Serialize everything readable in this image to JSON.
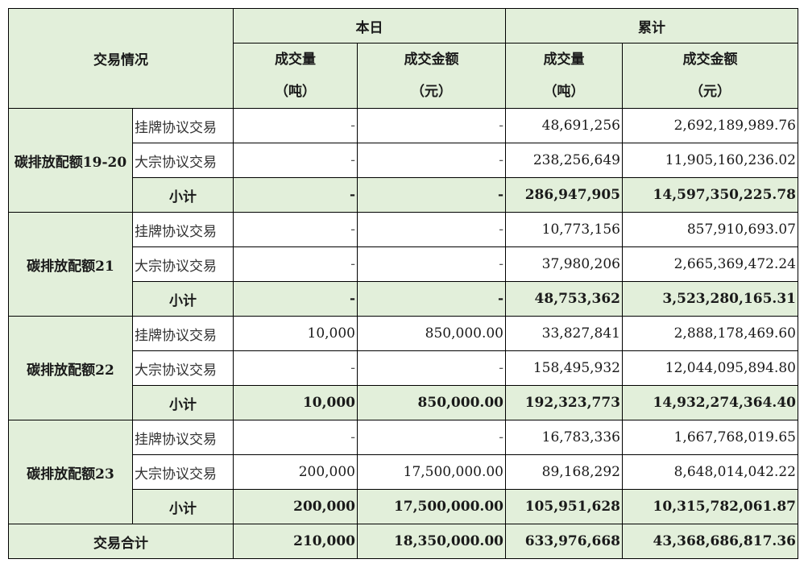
{
  "header": {
    "trading_status": "交易情况",
    "today": "本日",
    "cumulative": "累计",
    "volume": "成交量",
    "volume_unit": "（吨）",
    "amount": "成交金额",
    "amount_unit": "（元）"
  },
  "groups": [
    {
      "product": "碳排放配额19-20",
      "rows": [
        {
          "method": "挂牌协议交易",
          "today_volume": "-",
          "today_amount": "-",
          "cum_volume": "48,691,256",
          "cum_amount": "2,692,189,989.76"
        },
        {
          "method": "大宗协议交易",
          "today_volume": "-",
          "today_amount": "-",
          "cum_volume": "238,256,649",
          "cum_amount": "11,905,160,236.02"
        },
        {
          "method": "小计",
          "today_volume": "-",
          "today_amount": "-",
          "cum_volume": "286,947,905",
          "cum_amount": "14,597,350,225.78"
        }
      ]
    },
    {
      "product": "碳排放配额21",
      "rows": [
        {
          "method": "挂牌协议交易",
          "today_volume": "-",
          "today_amount": "-",
          "cum_volume": "10,773,156",
          "cum_amount": "857,910,693.07"
        },
        {
          "method": "大宗协议交易",
          "today_volume": "-",
          "today_amount": "-",
          "cum_volume": "37,980,206",
          "cum_amount": "2,665,369,472.24"
        },
        {
          "method": "小计",
          "today_volume": "-",
          "today_amount": "-",
          "cum_volume": "48,753,362",
          "cum_amount": "3,523,280,165.31"
        }
      ]
    },
    {
      "product": "碳排放配额22",
      "rows": [
        {
          "method": "挂牌协议交易",
          "today_volume": "10,000",
          "today_amount": "850,000.00",
          "cum_volume": "33,827,841",
          "cum_amount": "2,888,178,469.60"
        },
        {
          "method": "大宗协议交易",
          "today_volume": "-",
          "today_amount": "-",
          "cum_volume": "158,495,932",
          "cum_amount": "12,044,095,894.80"
        },
        {
          "method": "小计",
          "today_volume": "10,000",
          "today_amount": "850,000.00",
          "cum_volume": "192,323,773",
          "cum_amount": "14,932,274,364.40"
        }
      ]
    },
    {
      "product": "碳排放配额23",
      "rows": [
        {
          "method": "挂牌协议交易",
          "today_volume": "-",
          "today_amount": "-",
          "cum_volume": "16,783,336",
          "cum_amount": "1,667,768,019.65"
        },
        {
          "method": "大宗协议交易",
          "today_volume": "200,000",
          "today_amount": "17,500,000.00",
          "cum_volume": "89,168,292",
          "cum_amount": "8,648,014,042.22"
        },
        {
          "method": "小计",
          "today_volume": "200,000",
          "today_amount": "17,500,000.00",
          "cum_volume": "105,951,628",
          "cum_amount": "10,315,782,061.87"
        }
      ]
    }
  ],
  "total": {
    "label": "交易合计",
    "today_volume": "210,000",
    "today_amount": "18,350,000.00",
    "cum_volume": "633,976,668",
    "cum_amount": "43,368,686,817.36"
  },
  "colors": {
    "header_bg": "#e2efda",
    "subtotal_bg": "#e2efda",
    "grid_line": "#000000"
  }
}
